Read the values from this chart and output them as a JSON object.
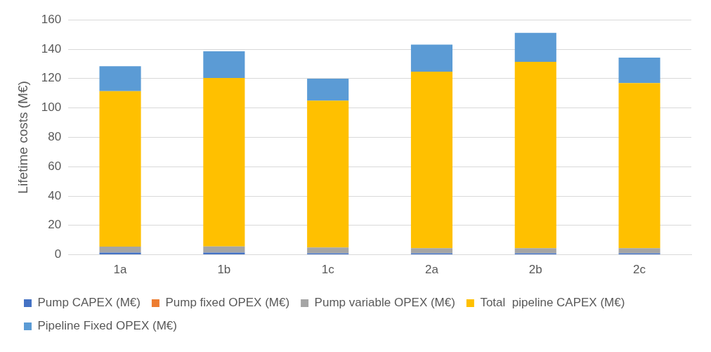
{
  "chart_data": {
    "type": "bar",
    "stacked": true,
    "ylabel": "Lifetime costs (M€)",
    "categories": [
      "1a",
      "1b",
      "1c",
      "2a",
      "2b",
      "2c"
    ],
    "series": [
      {
        "name": "Pump CAPEX (M€)",
        "color": "#4472c4",
        "values": [
          1.5,
          1.5,
          1,
          1,
          1,
          1
        ]
      },
      {
        "name": "Pump fixed OPEX (M€)",
        "color": "#ed7d31",
        "values": [
          null,
          null,
          null,
          null,
          null,
          null
        ]
      },
      {
        "name": "Pump variable OPEX (M€)",
        "color": "#a5a5a5",
        "values": [
          4,
          4.2,
          4,
          3.5,
          3.5,
          3.5
        ]
      },
      {
        "name": "Total  pipeline CAPEX (M€)",
        "color": "#ffc000",
        "values": [
          105.9,
          114.7,
          99.9,
          120.2,
          126.9,
          112.4
        ]
      },
      {
        "name": "Pipeline Fixed OPEX (M€)",
        "color": "#5b9bd5",
        "values": [
          17,
          18.2,
          15,
          18.4,
          19.7,
          17.4
        ]
      }
    ],
    "ylim": [
      0,
      160
    ],
    "yticks": [
      0,
      20,
      40,
      60,
      80,
      100,
      120,
      140,
      160
    ],
    "grid": "y",
    "legend": "bottom"
  }
}
